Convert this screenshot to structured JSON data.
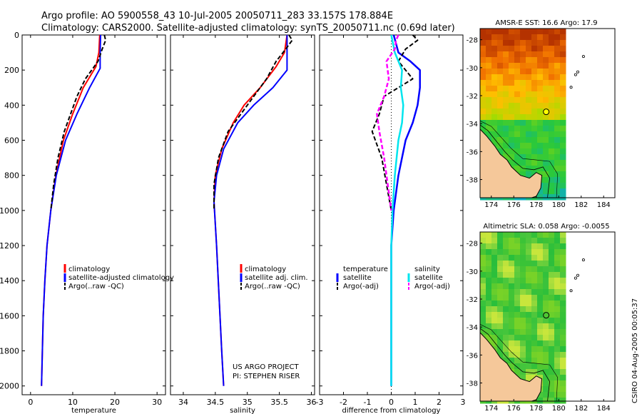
{
  "header": {
    "line1": "Argo profile: AO 5900558_43 10-Jul-2005 20050711_283 33.157S 178.884E",
    "line2": "Climatology: CARS2000. Satellite-adjusted climatology: synTS_20050711.nc (0.69d later)"
  },
  "colors": {
    "climatology": "#ff0000",
    "satellite": "#0000ff",
    "argo": "#000000",
    "sal_satellite": "#00e5ee",
    "sal_argo": "#ff00ff"
  },
  "chart_data": [
    {
      "type": "line",
      "panel": "temperature",
      "xlabel": "temperature",
      "ylabel": "",
      "xlim": [
        -2,
        32
      ],
      "ylim": [
        2050,
        0
      ],
      "xticks": [
        "0",
        "10",
        "20",
        "30"
      ],
      "xtick_values": [
        0,
        10,
        20,
        30
      ],
      "yticks": [
        "0",
        "200",
        "400",
        "600",
        "800",
        "1000",
        "1200",
        "1400",
        "1600",
        "1800",
        "2000"
      ],
      "ytick_values": [
        0,
        200,
        400,
        600,
        800,
        1000,
        1200,
        1400,
        1600,
        1800,
        2000
      ],
      "legend": [
        "climatology",
        "satellite-adjusted climatology",
        "Argo(..raw -QC)"
      ],
      "series": [
        {
          "name": "climatology",
          "depth": [
            0,
            100,
            180,
            300,
            450,
            600,
            800,
            1000,
            1200,
            1400,
            1600,
            1800,
            2000
          ],
          "values": [
            16.4,
            16.2,
            15.5,
            12.5,
            10.0,
            7.8,
            6.0,
            4.8,
            3.9,
            3.4,
            3.0,
            2.8,
            2.6
          ]
        },
        {
          "name": "satellite-adjusted climatology",
          "depth": [
            0,
            100,
            190,
            300,
            450,
            600,
            800,
            1000,
            1200,
            1400,
            1600,
            1800,
            2000
          ],
          "values": [
            16.6,
            16.5,
            16.5,
            14.0,
            11.0,
            8.3,
            6.1,
            4.8,
            3.9,
            3.4,
            3.0,
            2.8,
            2.6
          ]
        },
        {
          "name": "Argo(..raw -QC)",
          "depth": [
            0,
            30,
            80,
            150,
            250,
            350,
            450,
            550,
            700,
            850,
            1000
          ],
          "values": [
            17.5,
            17.8,
            17.0,
            16.0,
            13.0,
            11.0,
            9.5,
            8.0,
            6.5,
            5.5,
            4.8
          ]
        }
      ]
    },
    {
      "type": "line",
      "panel": "salinity",
      "xlabel": "salinity",
      "ylabel": "",
      "xlim": [
        33.8,
        36.05
      ],
      "ylim": [
        2050,
        0
      ],
      "xticks": [
        "34",
        "34.5",
        "35",
        "35.5",
        "36"
      ],
      "xtick_values": [
        34,
        34.5,
        35,
        35.5,
        36
      ],
      "legend": [
        "climatology",
        "satellite adj. clim.",
        "Argo(..raw -QC)"
      ],
      "annotation": [
        "US ARGO PROJECT",
        "PI: STEPHEN RISER"
      ],
      "series": [
        {
          "name": "climatology",
          "depth": [
            0,
            100,
            180,
            300,
            400,
            500,
            650,
            800,
            950,
            1200,
            1500,
            1800,
            2000
          ],
          "values": [
            35.62,
            35.58,
            35.45,
            35.2,
            34.95,
            34.78,
            34.6,
            34.5,
            34.48,
            34.52,
            34.56,
            34.6,
            34.63
          ]
        },
        {
          "name": "satellite adj. clim.",
          "depth": [
            0,
            100,
            200,
            300,
            400,
            500,
            650,
            800,
            950,
            1200,
            1500,
            1800,
            2000
          ],
          "values": [
            35.62,
            35.62,
            35.62,
            35.4,
            35.1,
            34.85,
            34.63,
            34.52,
            34.48,
            34.52,
            34.56,
            34.6,
            34.63
          ]
        },
        {
          "name": "Argo(..raw -QC)",
          "depth": [
            0,
            30,
            80,
            150,
            250,
            350,
            450,
            550,
            700,
            850,
            1000
          ],
          "values": [
            35.65,
            35.7,
            35.6,
            35.45,
            35.3,
            35.1,
            34.9,
            34.7,
            34.55,
            34.48,
            34.48
          ]
        }
      ]
    },
    {
      "type": "line",
      "panel": "difference",
      "xlabel": "difference from climatology",
      "ylabel": "",
      "xlim": [
        -3,
        3
      ],
      "ylim": [
        2050,
        0
      ],
      "xticks": [
        "-3",
        "-2",
        "-1",
        "0",
        "1",
        "2",
        "3"
      ],
      "xtick_values": [
        -3,
        -2,
        -1,
        0,
        1,
        2,
        3
      ],
      "legend_left": [
        "temperature",
        "satellite",
        "Argo(-adj)"
      ],
      "legend_right": [
        "salinity",
        "satellite",
        "Argo(-adj)"
      ],
      "series": [
        {
          "name": "temperature satellite",
          "depth": [
            0,
            100,
            150,
            200,
            300,
            400,
            500,
            600,
            800,
            1000,
            1200,
            1500,
            2000
          ],
          "values": [
            0.1,
            0.3,
            0.8,
            1.2,
            1.2,
            1.1,
            0.9,
            0.6,
            0.3,
            0.1,
            0.0,
            0.0,
            0.0
          ]
        },
        {
          "name": "temperature Argo(-adj)",
          "depth": [
            0,
            30,
            80,
            150,
            250,
            350,
            450,
            550,
            700,
            850,
            1000
          ],
          "values": [
            0.9,
            1.1,
            0.6,
            0.3,
            0.9,
            -0.3,
            -0.5,
            -0.8,
            -0.4,
            -0.2,
            0.0
          ]
        },
        {
          "name": "salinity satellite",
          "depth": [
            0,
            100,
            200,
            300,
            400,
            500,
            600,
            800,
            1000,
            1200,
            1500,
            2000
          ],
          "values": [
            0.0,
            0.15,
            0.45,
            0.4,
            0.5,
            0.45,
            0.3,
            0.15,
            0.05,
            0.0,
            0.0,
            0.0
          ]
        },
        {
          "name": "salinity Argo(-adj)",
          "depth": [
            0,
            30,
            80,
            150,
            250,
            350,
            450,
            550,
            700,
            850,
            1000
          ],
          "values": [
            0.3,
            0.2,
            0.15,
            -0.2,
            -0.1,
            -0.3,
            -0.6,
            -0.5,
            -0.3,
            -0.15,
            0.0
          ]
        }
      ]
    },
    {
      "type": "heatmap",
      "panel": "sst_map",
      "title": "AMSR-E SST: 16.6 Argo: 17.9",
      "xlim": [
        173,
        185
      ],
      "ylim": [
        -39.3,
        -27.2
      ],
      "xticks": [
        "174",
        "176",
        "178",
        "180",
        "182",
        "184"
      ],
      "xtick_values": [
        174,
        176,
        178,
        180,
        182,
        184
      ],
      "yticks": [
        "-28",
        "-30",
        "-32",
        "-34",
        "-36",
        "-38"
      ],
      "ytick_values": [
        -28,
        -30,
        -32,
        -34,
        -36,
        -38
      ],
      "marker": {
        "lon": 178.884,
        "lat": -33.157
      }
    },
    {
      "type": "heatmap",
      "panel": "sla_map",
      "title": "Altimetric SLA: 0.058 Argo: -0.0055",
      "xlim": [
        173,
        185
      ],
      "ylim": [
        -39.3,
        -27.2
      ],
      "xticks": [
        "174",
        "176",
        "178",
        "180",
        "182",
        "184"
      ],
      "xtick_values": [
        174,
        176,
        178,
        180,
        182,
        184
      ],
      "yticks": [
        "-28",
        "-30",
        "-32",
        "-34",
        "-36",
        "-38"
      ],
      "ytick_values": [
        -28,
        -30,
        -32,
        -34,
        -36,
        -38
      ],
      "marker": {
        "lon": 178.884,
        "lat": -33.157
      }
    }
  ],
  "credit": "CSIRO 04-Aug-2005 00:05:37"
}
